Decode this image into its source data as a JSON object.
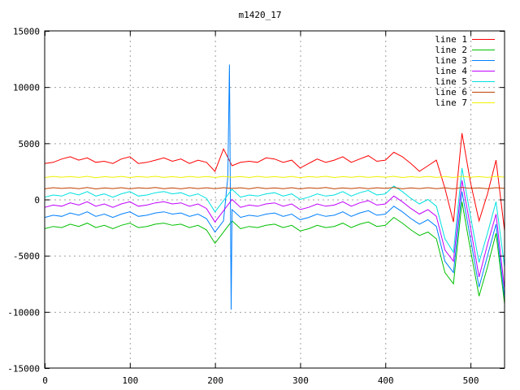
{
  "chart_data": {
    "type": "line",
    "title": "m1420_17",
    "xlabel": "",
    "ylabel": "",
    "xlim": [
      0,
      540
    ],
    "ylim": [
      -15000,
      15000
    ],
    "xticks": [
      0,
      100,
      200,
      300,
      400,
      500
    ],
    "yticks": [
      -15000,
      -10000,
      -5000,
      0,
      5000,
      10000,
      15000
    ],
    "grid": true,
    "legend_position": "top-right",
    "x": [
      0,
      10,
      20,
      30,
      40,
      50,
      60,
      70,
      80,
      90,
      100,
      110,
      120,
      130,
      140,
      150,
      160,
      170,
      180,
      190,
      200,
      210,
      220,
      230,
      240,
      250,
      260,
      270,
      280,
      290,
      300,
      310,
      320,
      330,
      340,
      350,
      360,
      370,
      380,
      390,
      400,
      410,
      420,
      430,
      440,
      450,
      460,
      470,
      480,
      490,
      500,
      510,
      520,
      530,
      540
    ],
    "series": [
      {
        "name": "line 1",
        "color": "#ff0000",
        "values": [
          3200,
          3300,
          3600,
          3800,
          3500,
          3700,
          3300,
          3400,
          3200,
          3600,
          3800,
          3200,
          3300,
          3500,
          3700,
          3400,
          3600,
          3200,
          3500,
          3300,
          2500,
          4500,
          3000,
          3300,
          3400,
          3300,
          3700,
          3600,
          3300,
          3500,
          2800,
          3200,
          3600,
          3300,
          3500,
          3800,
          3300,
          3600,
          3900,
          3400,
          3500,
          4200,
          3800,
          3200,
          2500,
          3000,
          3500,
          1000,
          -2000,
          5900,
          1500,
          -1900,
          500,
          3500,
          -2800
        ]
      },
      {
        "name": "line 2",
        "color": "#00c000",
        "values": [
          -2600,
          -2400,
          -2500,
          -2200,
          -2400,
          -2100,
          -2500,
          -2300,
          -2600,
          -2300,
          -2100,
          -2500,
          -2400,
          -2200,
          -2100,
          -2300,
          -2200,
          -2500,
          -2300,
          -2700,
          -3900,
          -2900,
          -1900,
          -2600,
          -2400,
          -2500,
          -2300,
          -2200,
          -2500,
          -2300,
          -2800,
          -2600,
          -2300,
          -2500,
          -2400,
          -2100,
          -2500,
          -2200,
          -2000,
          -2400,
          -2300,
          -1600,
          -2100,
          -2700,
          -3200,
          -2900,
          -3500,
          -6500,
          -7500,
          -200,
          -4500,
          -8600,
          -6000,
          -3000,
          -9300
        ]
      },
      {
        "name": "line 3",
        "color": "#0080ff",
        "x": [
          0,
          10,
          20,
          30,
          40,
          50,
          60,
          70,
          80,
          90,
          100,
          110,
          120,
          130,
          140,
          150,
          160,
          170,
          180,
          190,
          200,
          210,
          215,
          217,
          219,
          220,
          230,
          240,
          250,
          260,
          270,
          280,
          290,
          300,
          310,
          320,
          330,
          340,
          350,
          360,
          370,
          380,
          390,
          400,
          410,
          420,
          430,
          440,
          450,
          460,
          470,
          480,
          490,
          500,
          510,
          520,
          530,
          540
        ],
        "values": [
          -1600,
          -1400,
          -1500,
          -1200,
          -1400,
          -1100,
          -1500,
          -1300,
          -1600,
          -1300,
          -1100,
          -1500,
          -1400,
          -1200,
          -1100,
          -1300,
          -1200,
          -1500,
          -1300,
          -1700,
          -2900,
          -1900,
          2000,
          12000,
          -9800,
          -900,
          -1600,
          -1400,
          -1500,
          -1300,
          -1200,
          -1500,
          -1300,
          -1800,
          -1600,
          -1300,
          -1500,
          -1400,
          -1100,
          -1500,
          -1200,
          -1000,
          -1400,
          -1300,
          -600,
          -1100,
          -1700,
          -2200,
          -1800,
          -2400,
          -5500,
          -6500,
          700,
          -3500,
          -7800,
          -5000,
          -2200,
          -8800
        ]
      },
      {
        "name": "line 4",
        "color": "#c000ff",
        "values": [
          -700,
          -500,
          -600,
          -300,
          -500,
          -200,
          -600,
          -400,
          -700,
          -400,
          -200,
          -600,
          -500,
          -300,
          -200,
          -400,
          -300,
          -600,
          -400,
          -800,
          -2000,
          -1000,
          0,
          -700,
          -500,
          -600,
          -400,
          -300,
          -600,
          -400,
          -900,
          -700,
          -400,
          -600,
          -500,
          -200,
          -600,
          -300,
          -100,
          -500,
          -400,
          300,
          -200,
          -800,
          -1300,
          -900,
          -1500,
          -4500,
          -5500,
          1700,
          -2500,
          -6900,
          -4000,
          -1300,
          -8000
        ]
      },
      {
        "name": "line 5",
        "color": "#00e0e0",
        "values": [
          200,
          400,
          300,
          600,
          400,
          700,
          300,
          500,
          200,
          500,
          700,
          300,
          400,
          600,
          700,
          500,
          600,
          300,
          500,
          100,
          -1100,
          -100,
          900,
          200,
          400,
          300,
          500,
          600,
          300,
          500,
          0,
          200,
          500,
          300,
          400,
          700,
          300,
          600,
          800,
          400,
          500,
          1200,
          700,
          100,
          -400,
          0,
          -600,
          -3500,
          -4700,
          2800,
          -1500,
          -5600,
          -3000,
          -200,
          -6000
        ]
      },
      {
        "name": "line 6",
        "color": "#c04000",
        "values": [
          950,
          1050,
          980,
          1040,
          960,
          1060,
          940,
          1030,
          970,
          1050,
          950,
          1040,
          980,
          1060,
          960,
          1030,
          950,
          1050,
          970,
          1040,
          960,
          1050,
          980,
          1040,
          950,
          1060,
          970,
          1030,
          960,
          1050,
          940,
          1040,
          980,
          1060,
          950,
          1030,
          970,
          1050,
          960,
          1040,
          980,
          1060,
          950,
          1030,
          970,
          1050,
          960,
          1040,
          950,
          1060,
          980,
          1030,
          960,
          1050,
          980
        ]
      },
      {
        "name": "line 7",
        "color": "#f0f000",
        "values": [
          1950,
          2050,
          1980,
          2040,
          1960,
          2060,
          1940,
          2030,
          1970,
          2050,
          1950,
          2040,
          1980,
          2060,
          1960,
          2030,
          1950,
          2050,
          1970,
          2040,
          1960,
          2050,
          1980,
          2040,
          1950,
          2060,
          1970,
          2030,
          1960,
          2050,
          1940,
          2040,
          1980,
          2060,
          1950,
          2030,
          1970,
          2050,
          1960,
          2040,
          1980,
          2060,
          1950,
          2030,
          1970,
          2050,
          1960,
          2040,
          1950,
          2060,
          1980,
          2030,
          1960,
          2050,
          1980
        ]
      }
    ]
  }
}
